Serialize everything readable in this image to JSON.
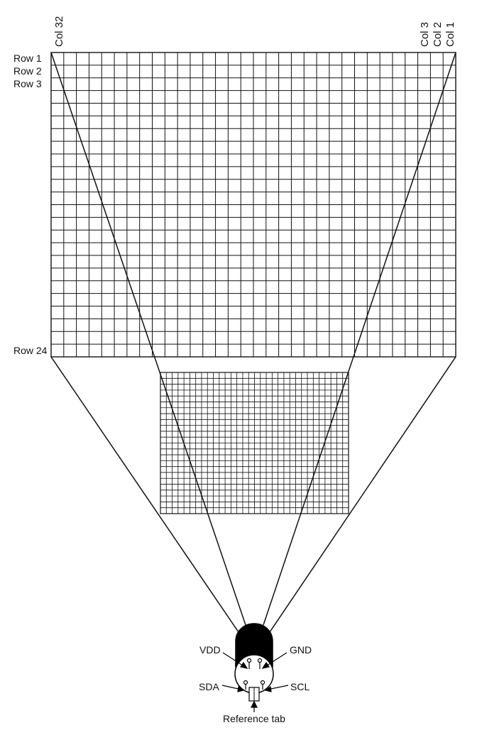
{
  "columns": {
    "count": 32,
    "labels": [
      {
        "text": "Col 32",
        "col": 32
      },
      {
        "text": "Col 3",
        "col": 3
      },
      {
        "text": "Col 2",
        "col": 2
      },
      {
        "text": "Col 1",
        "col": 1
      }
    ]
  },
  "rows": {
    "count": 24,
    "labels": [
      {
        "text": "Row 1",
        "row": 1
      },
      {
        "text": "Row 2",
        "row": 2
      },
      {
        "text": "Row 3",
        "row": 3
      },
      {
        "text": "Row 24",
        "row": 24
      }
    ]
  },
  "sensor": {
    "pins": {
      "vdd": "VDD",
      "gnd": "GND",
      "sda": "SDA",
      "scl": "SCL"
    },
    "reference_tab": "Reference tab"
  },
  "colors": {
    "line": "#111111",
    "body": "#000000",
    "background": "#ffffff"
  }
}
